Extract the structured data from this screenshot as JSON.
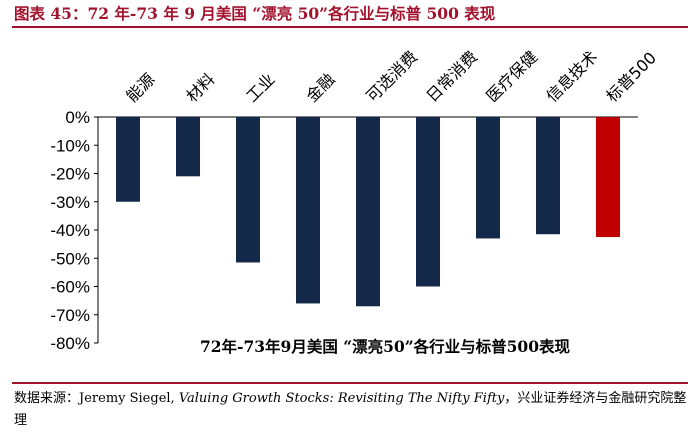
{
  "figure_title": "图表 45：72 年-73 年 9 月美国 “漂亮 50”各行业与标普 500 表现",
  "source": {
    "prefix": "数据来源：Jeremy Siegel, ",
    "italic": "Valuing Growth Stocks: Revisiting The Nifty Fifty",
    "suffix": "，兴业证券经济与金融研究院整理"
  },
  "chart_data": {
    "type": "bar",
    "title": "72年-73年9月美国 “漂亮50”各行业与标普500表现",
    "categories": [
      "能源",
      "材料",
      "工业",
      "金融",
      "可选消费",
      "日常消费",
      "医疗保健",
      "信息技术",
      "标普500"
    ],
    "values": [
      -30,
      -21,
      -51.5,
      -66,
      -67,
      -60,
      -43,
      -41.5,
      -42.5
    ],
    "colors": [
      "#14294a",
      "#14294a",
      "#14294a",
      "#14294a",
      "#14294a",
      "#14294a",
      "#14294a",
      "#14294a",
      "#c00000"
    ],
    "ylim": [
      -80,
      0
    ],
    "yticks": [
      0,
      -10,
      -20,
      -30,
      -40,
      -50,
      -60,
      -70,
      -80
    ],
    "ytick_labels": [
      "0%",
      "-10%",
      "-20%",
      "-30%",
      "-40%",
      "-50%",
      "-60%",
      "-70%",
      "-80%"
    ],
    "xlabel": "",
    "ylabel": ""
  }
}
